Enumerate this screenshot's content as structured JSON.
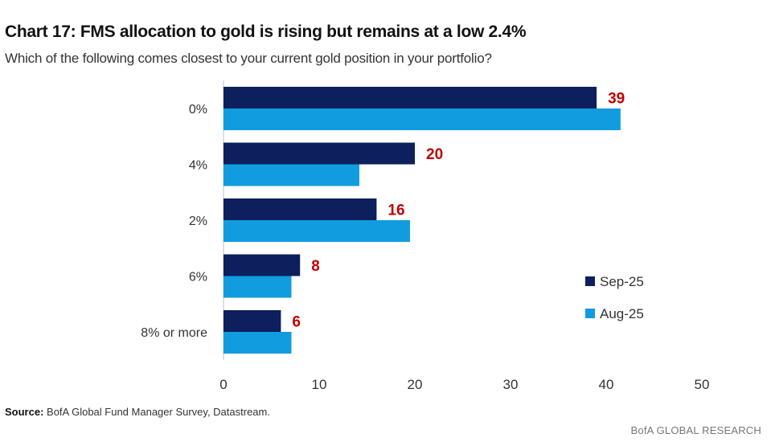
{
  "header": {
    "title": "Chart 17: FMS allocation to gold is rising but remains at a low 2.4%",
    "subtitle": "Which of the following comes closest to your current gold position in your portfolio?"
  },
  "footer": {
    "source_label": "Source:",
    "source_text": " BofA Global Fund Manager Survey, Datastream.",
    "brand": "BofA GLOBAL RESEARCH"
  },
  "chart_data": {
    "type": "bar",
    "orientation": "horizontal",
    "categories": [
      "0%",
      "4%",
      "2%",
      "6%",
      "8% or more"
    ],
    "series": [
      {
        "name": "Sep-25",
        "values": [
          39,
          20,
          16,
          8,
          6
        ],
        "color": "#0d1f5c",
        "data_labels": true
      },
      {
        "name": "Aug-25",
        "values": [
          41.5,
          14.2,
          19.5,
          7.1,
          7.1
        ],
        "color": "#129ce0",
        "data_labels": false
      }
    ],
    "data_label_color": "#c00000",
    "xlim": [
      0,
      50
    ],
    "xticks": [
      0,
      10,
      20,
      30,
      40,
      50
    ],
    "grid": false,
    "legend_position": "right"
  }
}
